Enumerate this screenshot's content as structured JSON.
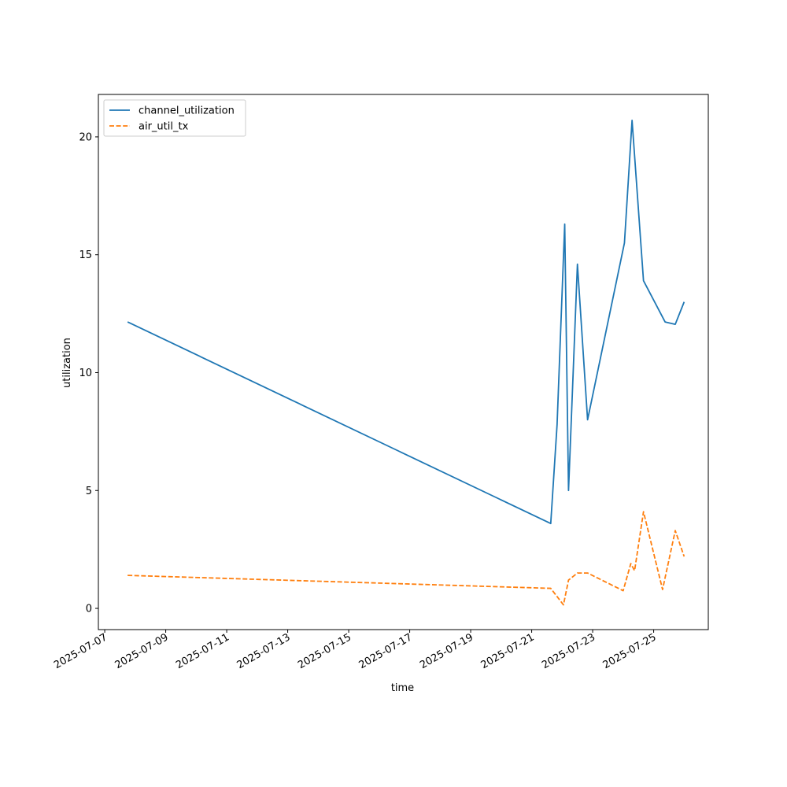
{
  "chart_data": {
    "type": "line",
    "title": "",
    "xlabel": "time",
    "ylabel": "utilization",
    "xlim": [
      "2025-07-06T19:00",
      "2025-07-26T19:00"
    ],
    "ylim": [
      -0.9,
      21.8
    ],
    "x_ticks": [
      "2025-07-07",
      "2025-07-09",
      "2025-07-11",
      "2025-07-13",
      "2025-07-15",
      "2025-07-17",
      "2025-07-19",
      "2025-07-21",
      "2025-07-23",
      "2025-07-25"
    ],
    "y_ticks": [
      0,
      5,
      10,
      15,
      20
    ],
    "legend": {
      "position": "upper-left"
    },
    "grid": false,
    "series": [
      {
        "name": "channel_utilization",
        "color": "#1f77b4",
        "style": "solid",
        "points": [
          [
            "2025-07-07T18:00",
            12.15
          ],
          [
            "2025-07-21T15:00",
            3.6
          ],
          [
            "2025-07-21T20:00",
            7.8
          ],
          [
            "2025-07-22T02:00",
            16.3
          ],
          [
            "2025-07-22T05:00",
            5.0
          ],
          [
            "2025-07-22T12:00",
            14.6
          ],
          [
            "2025-07-22T20:00",
            8.0
          ],
          [
            "2025-07-24T01:00",
            15.5
          ],
          [
            "2025-07-24T07:00",
            20.7
          ],
          [
            "2025-07-24T16:00",
            13.9
          ],
          [
            "2025-07-25T09:00",
            12.15
          ],
          [
            "2025-07-25T17:00",
            12.05
          ],
          [
            "2025-07-26T00:00",
            13.0
          ]
        ]
      },
      {
        "name": "air_util_tx",
        "color": "#ff7f0e",
        "style": "dashed",
        "points": [
          [
            "2025-07-07T18:00",
            1.4
          ],
          [
            "2025-07-21T15:00",
            0.85
          ],
          [
            "2025-07-22T01:00",
            0.15
          ],
          [
            "2025-07-22T05:00",
            1.2
          ],
          [
            "2025-07-22T12:00",
            1.5
          ],
          [
            "2025-07-22T20:00",
            1.5
          ],
          [
            "2025-07-24T00:00",
            0.75
          ],
          [
            "2025-07-24T06:00",
            1.9
          ],
          [
            "2025-07-24T09:00",
            1.6
          ],
          [
            "2025-07-24T16:00",
            4.1
          ],
          [
            "2025-07-25T07:00",
            0.8
          ],
          [
            "2025-07-25T17:00",
            3.3
          ],
          [
            "2025-07-26T00:00",
            2.2
          ]
        ]
      }
    ]
  }
}
